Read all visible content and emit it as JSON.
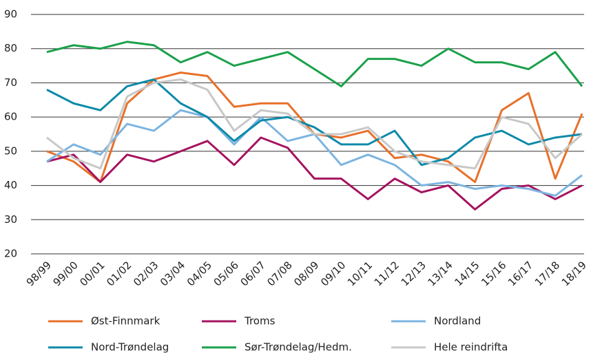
{
  "chart_data": {
    "type": "line",
    "categories": [
      "98/99",
      "99/00",
      "00/01",
      "01/02",
      "02/03",
      "03/04",
      "04/05",
      "05/06",
      "06/07",
      "07/08",
      "08/09",
      "09/10",
      "10/11",
      "11/12",
      "12/13",
      "13/14",
      "14/15",
      "15/16",
      "16/17",
      "17/18",
      "18/19"
    ],
    "series": [
      {
        "name": "Øst-Finnmark",
        "color": "#e8702a",
        "values": [
          50,
          47,
          41,
          64,
          71,
          73,
          72,
          63,
          64,
          64,
          55,
          54,
          56,
          48,
          49,
          47,
          41,
          62,
          67,
          42,
          61
        ]
      },
      {
        "name": "Troms",
        "color": "#a5135f",
        "values": [
          47,
          49,
          41,
          49,
          47,
          50,
          53,
          46,
          54,
          51,
          42,
          42,
          36,
          42,
          38,
          40,
          33,
          39,
          40,
          36,
          40
        ]
      },
      {
        "name": "Nordland",
        "color": "#7cb4e0",
        "values": [
          47,
          52,
          49,
          58,
          56,
          62,
          60,
          52,
          60,
          53,
          55,
          46,
          49,
          46,
          40,
          41,
          39,
          40,
          39,
          37,
          43
        ]
      },
      {
        "name": "Nord-Trøndelag",
        "color": "#0d8aa8",
        "values": [
          68,
          64,
          62,
          69,
          71,
          64,
          60,
          53,
          59,
          60,
          57,
          52,
          52,
          56,
          46,
          48,
          54,
          56,
          52,
          54,
          55
        ]
      },
      {
        "name": "Sør-Trøndelag/Hedm.",
        "color": "#1aa04a",
        "values": [
          79,
          81,
          80,
          82,
          81,
          76,
          79,
          75,
          77,
          79,
          74,
          69,
          77,
          77,
          75,
          80,
          76,
          76,
          74,
          79,
          69
        ]
      },
      {
        "name": "Hele reindrifta",
        "color": "#c8c8c8",
        "values": [
          54,
          48,
          45,
          66,
          70,
          71,
          68,
          56,
          62,
          61,
          55,
          55,
          57,
          50,
          47,
          46,
          45,
          60,
          58,
          48,
          55
        ]
      }
    ],
    "ylim": [
      20,
      90
    ],
    "yticks": [
      20,
      30,
      40,
      50,
      60,
      70,
      80,
      90
    ],
    "grid": true
  }
}
